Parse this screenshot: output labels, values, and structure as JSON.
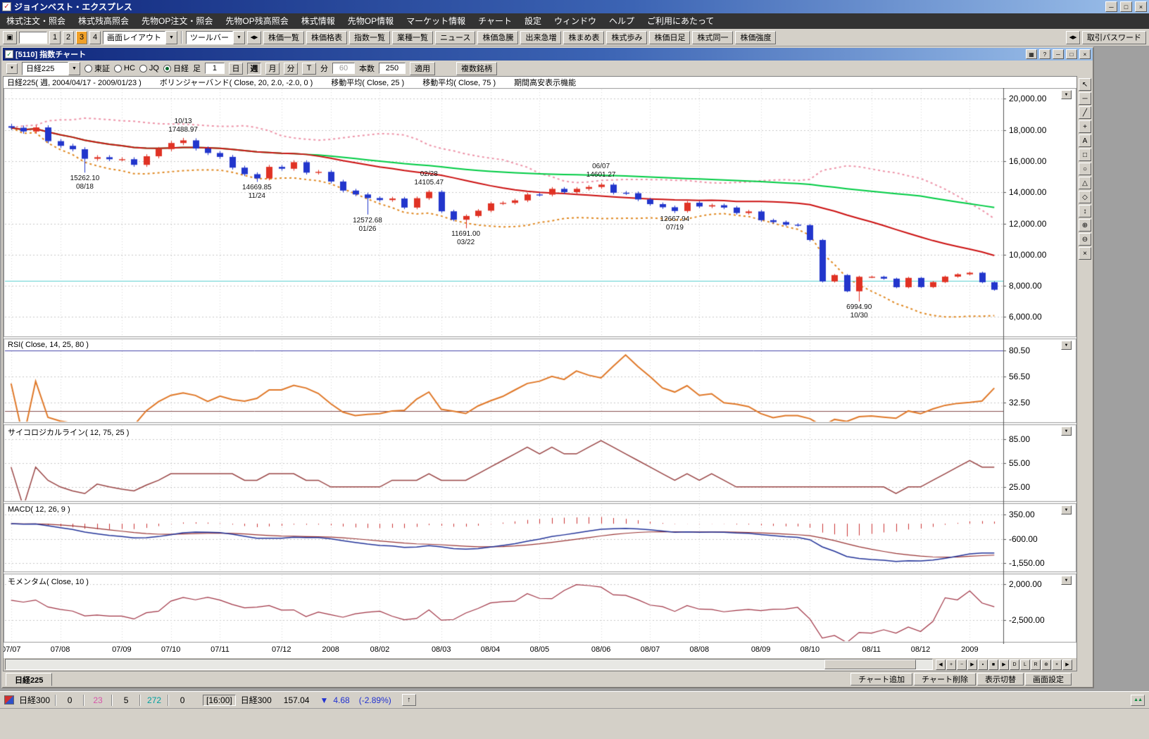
{
  "window": {
    "title": "ジョインベスト・エクスプレス",
    "buttons": [
      "─",
      "□",
      "×"
    ]
  },
  "icons": {
    "dropdown": "▼",
    "collapse": "◀▶",
    "window": "▣",
    "up": "↑"
  },
  "menu": {
    "items": [
      "株式注文・照会",
      "株式残高照会",
      "先物OP注文・照会",
      "先物OP残高照会",
      "株式情報",
      "先物OP情報",
      "マーケット情報",
      "チャート",
      "設定",
      "ウィンドウ",
      "ヘルプ",
      "ご利用にあたって"
    ]
  },
  "toolbar": {
    "entry_value": "",
    "numbers": [
      "1",
      "2",
      "3",
      "4"
    ],
    "screen_layout": "画面レイアウト",
    "toolbar_menu": "ツールバー",
    "buttons": [
      "株価一覧",
      "株価格表",
      "指数一覧",
      "業種一覧",
      "ニュース",
      "株価急騰",
      "出来急増",
      "株まめ表",
      "株式歩み",
      "株価日足",
      "株式同一",
      "株価強度"
    ],
    "password": "取引パスワード"
  },
  "chart_window": {
    "title": "[5110] 指数チャート",
    "title_buttons": [
      "▦",
      "?",
      "─",
      "□",
      "×"
    ],
    "controls": {
      "symbol": "日経225",
      "radios": [
        "東証",
        "HC",
        "JQ",
        "日経"
      ],
      "selected_radio": "日経",
      "ashi_label": "足",
      "ashi_value": "1",
      "period_buttons": [
        "日",
        "週",
        "月",
        "分",
        "T"
      ],
      "active_period": "週",
      "min_label": "分",
      "min_value": "60",
      "bars_label": "本数",
      "bars_value": "250",
      "apply_label": "適用",
      "multi_label": "複数銘柄"
    },
    "legend": [
      "日経225( 週, 2004/04/17 - 2009/01/23 )",
      "ボリンジャーバンド( Close, 20, 2.0, -2.0, 0 )",
      "移動平均( Close, 25 )",
      "移動平均( Close, 75 )",
      "期間高安表示機能"
    ],
    "tools": [
      "↖",
      "─",
      "╱",
      "+",
      "A",
      "□",
      "○",
      "△",
      "◇",
      "↕",
      "⊕",
      "⊖",
      "×"
    ],
    "scroll_buttons": [
      "◀",
      "+",
      "−",
      "▶",
      "▪",
      "■",
      "▶",
      "D",
      "L",
      "R",
      "⊕",
      "×",
      "▶"
    ],
    "tab": "日経225",
    "bottom_buttons": [
      "チャート追加",
      "チャート削除",
      "表示切替",
      "画面設定"
    ]
  },
  "statusbar": {
    "symbol": "日経300",
    "counts": [
      "0",
      "23",
      "5",
      "272",
      "0"
    ],
    "time": "[16:00]",
    "quote_symbol": "日経300",
    "price": "157.04",
    "arrow": "▼",
    "change": "4.68",
    "percent": "(-2.89%)",
    "corner_icon": "▲▲"
  },
  "chart_data": {
    "type": "candlestick",
    "title": "日経225( 週, 2004/04/17 - 2009/01/23 )",
    "symbol": "日経225",
    "timeframe": "週足",
    "visible_range": "2007/07 - 2009/01",
    "closes": [
      18140,
      17900,
      18160,
      17280,
      16980,
      16760,
      16150,
      16250,
      16120,
      16120,
      15760,
      16310,
      16770,
      17160,
      17330,
      16810,
      16520,
      16270,
      15580,
      15160,
      14890,
      15630,
      15510,
      15930,
      15260,
      15310,
      14690,
      14110,
      13860,
      13630,
      13500,
      13600,
      13020,
      13620,
      14030,
      12780,
      12240,
      12480,
      12820,
      13290,
      13320,
      13480,
      13860,
      13850,
      14220,
      14010,
      14220,
      14340,
      14490,
      13970,
      13940,
      13540,
      13240,
      13040,
      12800,
      13330,
      13090,
      13170,
      13020,
      12670,
      12770,
      12210,
      12090,
      11920,
      11890,
      10940,
      8280,
      8690,
      7650,
      8580,
      8580,
      8460,
      7910,
      8510,
      7920,
      8240,
      8590,
      8740,
      8840,
      8230,
      7750
    ],
    "x_labels": [
      {
        "i": 0,
        "t": "07/07"
      },
      {
        "i": 4,
        "t": "07/08"
      },
      {
        "i": 9,
        "t": "07/09"
      },
      {
        "i": 13,
        "t": "07/10"
      },
      {
        "i": 17,
        "t": "07/11"
      },
      {
        "i": 22,
        "t": "07/12"
      },
      {
        "i": 26,
        "t": "2008"
      },
      {
        "i": 30,
        "t": "08/02"
      },
      {
        "i": 35,
        "t": "08/03"
      },
      {
        "i": 39,
        "t": "08/04"
      },
      {
        "i": 43,
        "t": "08/05"
      },
      {
        "i": 48,
        "t": "08/06"
      },
      {
        "i": 52,
        "t": "08/07"
      },
      {
        "i": 56,
        "t": "08/08"
      },
      {
        "i": 61,
        "t": "08/09"
      },
      {
        "i": 65,
        "t": "08/10"
      },
      {
        "i": 70,
        "t": "08/11"
      },
      {
        "i": 74,
        "t": "08/12"
      },
      {
        "i": 78,
        "t": "2009"
      }
    ],
    "extremes": [
      {
        "i": 6,
        "kind": "low",
        "value": 15262.1,
        "date": "08/18"
      },
      {
        "i": 14,
        "kind": "high",
        "value": 17488.97,
        "date": "10/13"
      },
      {
        "i": 20,
        "kind": "low",
        "value": 14669.85,
        "date": "11/24"
      },
      {
        "i": 29,
        "kind": "low",
        "value": 12572.68,
        "date": "01/26"
      },
      {
        "i": 34,
        "kind": "high",
        "value": 14105.47,
        "date": "02/28"
      },
      {
        "i": 37,
        "kind": "low",
        "value": 11691.0,
        "date": "03/22"
      },
      {
        "i": 48,
        "kind": "high",
        "value": 14601.27,
        "date": "06/07"
      },
      {
        "i": 54,
        "kind": "low",
        "value": 12667.94,
        "date": "07/19"
      },
      {
        "i": 69,
        "kind": "low",
        "value": 6994.9,
        "date": "10/30"
      }
    ],
    "price_line": 8300,
    "panels": [
      {
        "title": "",
        "ticks": [
          20000,
          18000,
          16000,
          14000,
          12000,
          10000,
          8000,
          6000
        ],
        "vmin": 4800,
        "vmax": 20600
      },
      {
        "title": "RSI( Close, 14, 25, 80 )",
        "ticks": [
          80.5,
          56.5,
          32.5
        ],
        "vmin": 15,
        "vmax": 90,
        "refs": [
          80,
          25
        ]
      },
      {
        "title": "サイコロジカルライン( 12, 75, 25 )",
        "ticks": [
          85,
          55,
          25
        ],
        "vmin": 8,
        "vmax": 102
      },
      {
        "title": "MACD( 12, 26, 9 )",
        "ticks": [
          350,
          -600,
          -1550
        ],
        "vmin": -1850,
        "vmax": 750
      },
      {
        "title": "モメンタム( Close, 10 )",
        "ticks": [
          2000,
          -2500
        ],
        "vmin": -5200,
        "vmax": 3200
      }
    ],
    "indicators": {
      "bollinger": "( Close, 20, 2.0, -2.0, 0 )",
      "ma_short": 25,
      "ma_long": 75
    },
    "colors": {
      "up": "#e03224",
      "down": "#2236cc",
      "ma25": "#cc1111",
      "ma75": "#00cc44",
      "boll_upper": "#ee93a8",
      "boll_lower": "#e08820",
      "grid": "#c8c8c8",
      "price_line": "#5ad0d0",
      "rsi": "#e07828",
      "rsi_ref_high": "#4444aa",
      "rsi_ref_low": "#885050",
      "psych": "#994444",
      "macd": "#223399",
      "macd_signal": "#993333",
      "macd_hist": "#cc3333",
      "momentum": "#a03344",
      "axis_text": "#000000"
    }
  }
}
